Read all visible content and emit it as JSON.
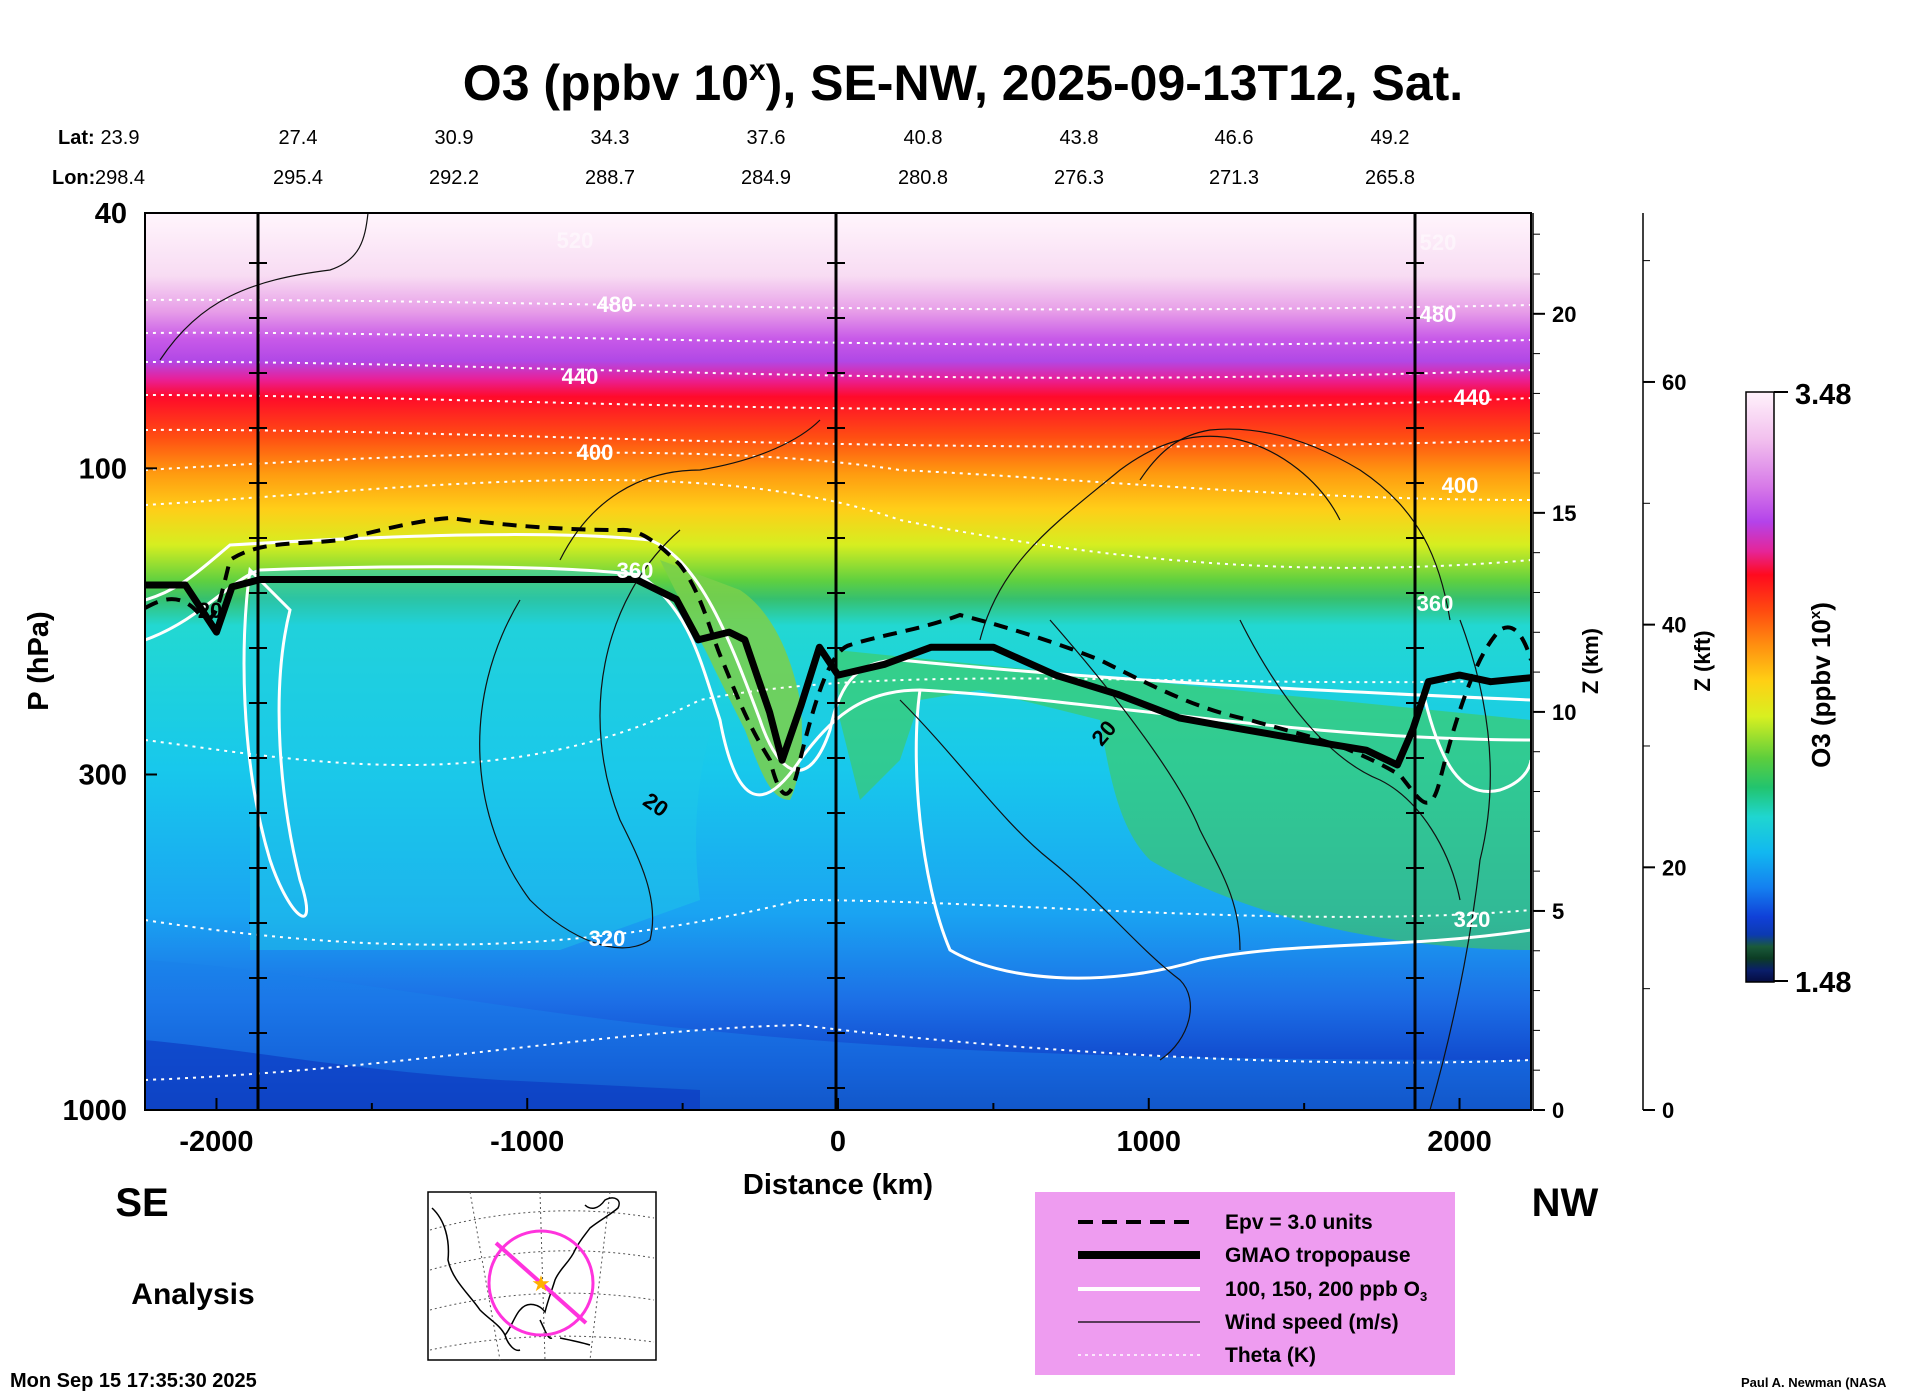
{
  "chart_data": {
    "type": "heatmap",
    "title": "O3 (ppbv 10",
    "title_superscript": "x",
    "title_suffix": "), SE-NW, 2025-09-13T12, Sat.",
    "xlabel": "Distance (km)",
    "ylabel": "P (hPa)",
    "y2label": "Z (km)",
    "y3label": "Z (kft)",
    "colorbar_label": "O3 (ppbv 10",
    "colorbar_label_sup": "x",
    "colorbar_label_suffix": ")",
    "colorbar_max": "3.48",
    "colorbar_min": "1.48",
    "colorbar_range": [
      1.48,
      3.48
    ],
    "xlim": [
      -2230,
      2230
    ],
    "ylim": [
      1000,
      40
    ],
    "x_ticks": [
      "-2000",
      "-1000",
      "0",
      "1000",
      "2000"
    ],
    "x_tick_values": [
      -2000,
      -1000,
      0,
      1000,
      2000
    ],
    "p_ticks": [
      "40",
      "100",
      "300",
      "1000"
    ],
    "p_tick_values": [
      40,
      100,
      300,
      1000
    ],
    "z_km_ticks": [
      "20",
      "15",
      "10",
      "5",
      "0"
    ],
    "z_km_values": [
      20,
      15,
      10,
      5,
      0
    ],
    "z_kft_ticks": [
      "60",
      "40",
      "20",
      "0"
    ],
    "z_kft_values": [
      60,
      40,
      20,
      0
    ],
    "lat_label": "Lat:",
    "lon_label": "Lon:",
    "lat": [
      "23.9",
      "27.4",
      "30.9",
      "34.3",
      "37.6",
      "40.8",
      "43.8",
      "46.6",
      "49.2"
    ],
    "lon": [
      "298.4",
      "295.4",
      "292.2",
      "288.7",
      "284.9",
      "280.8",
      "276.3",
      "271.3",
      "265.8"
    ],
    "theta_labels": [
      "520",
      "480",
      "440",
      "400",
      "360",
      "320",
      "520",
      "480",
      "440",
      "400",
      "360",
      "320"
    ],
    "wind_labels": [
      "20",
      "20",
      "20"
    ],
    "left_end": "SE",
    "right_end": "NW",
    "mode": "Analysis",
    "legend": [
      {
        "label": "Epv = 3.0 units",
        "style": "dashed"
      },
      {
        "label": "GMAO tropopause",
        "style": "thick"
      },
      {
        "label": "100, 150, 200 ppb O",
        "sub": "3",
        "style": "white"
      },
      {
        "label": "Wind speed (m/s)",
        "style": "thin"
      },
      {
        "label": "Theta (K)",
        "style": "dotted"
      }
    ],
    "tropopause_pressure_hPa": {
      "x": [
        -2230,
        -2100,
        -2000,
        -1950,
        -1860,
        -1200,
        -650,
        -520,
        -450,
        -350,
        -300,
        -220,
        -180,
        -120,
        -60,
        0,
        150,
        300,
        500,
        700,
        900,
        1100,
        1300,
        1500,
        1700,
        1800,
        1850,
        1900,
        2000,
        2100,
        2230
      ],
      "p": [
        152,
        152,
        180,
        153,
        149,
        149,
        149,
        160,
        185,
        180,
        185,
        240,
        285,
        235,
        190,
        210,
        202,
        190,
        190,
        210,
        225,
        245,
        255,
        265,
        275,
        290,
        255,
        215,
        210,
        215,
        212
      ]
    }
  },
  "timestamp": "Mon Sep 15 17:35:30 2025",
  "credit": "Paul A. Newman (NASA"
}
